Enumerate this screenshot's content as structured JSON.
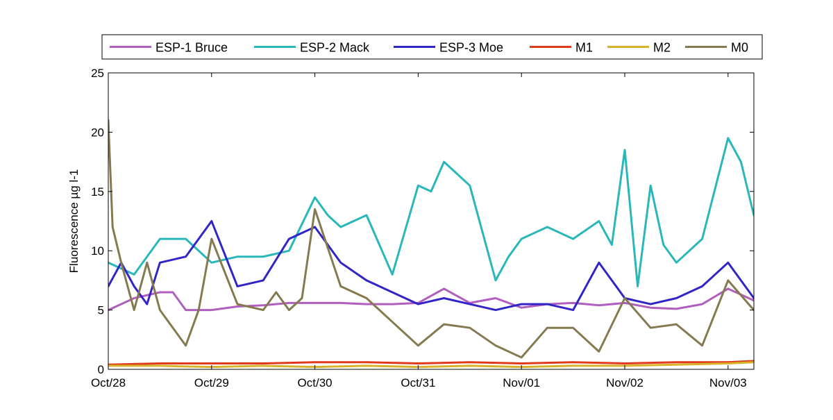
{
  "chart_data": {
    "type": "line",
    "title": "",
    "xlabel": "",
    "ylabel": "Fluorescence µg l-1",
    "xlim": [
      "2010-10-28T00:00",
      "2010-11-03T06:00"
    ],
    "ylim": [
      0,
      25
    ],
    "yticks": [
      0,
      5,
      10,
      15,
      20,
      25
    ],
    "xticks": [
      "Oct/28",
      "Oct/29",
      "Oct/30",
      "Oct/31",
      "Nov/01",
      "Nov/02",
      "Nov/03"
    ],
    "xtick_dates": [
      "2010-10-28T00:00",
      "2010-10-29T00:00",
      "2010-10-30T00:00",
      "2010-10-31T00:00",
      "2010-11-01T00:00",
      "2010-11-02T00:00",
      "2010-11-03T00:00"
    ],
    "grid": false,
    "legend_position": "top, above plot, single row",
    "series": [
      {
        "name": "ESP-1 Bruce",
        "color": "#b05fbe",
        "x": [
          "2010-10-28T00:00",
          "2010-10-28T06:00",
          "2010-10-28T12:00",
          "2010-10-28T15:00",
          "2010-10-28T18:00",
          "2010-10-29T00:00",
          "2010-10-29T06:00",
          "2010-10-29T12:00",
          "2010-10-29T18:00",
          "2010-10-30T00:00",
          "2010-10-30T06:00",
          "2010-10-30T12:00",
          "2010-10-30T18:00",
          "2010-10-31T00:00",
          "2010-10-31T06:00",
          "2010-10-31T12:00",
          "2010-10-31T18:00",
          "2010-11-01T00:00",
          "2010-11-01T06:00",
          "2010-11-01T12:00",
          "2010-11-01T18:00",
          "2010-11-02T00:00",
          "2010-11-02T06:00",
          "2010-11-02T12:00",
          "2010-11-02T18:00",
          "2010-11-03T00:00",
          "2010-11-03T06:00"
        ],
        "y": [
          5.0,
          6.0,
          6.5,
          6.5,
          5.0,
          5.0,
          5.3,
          5.4,
          5.6,
          5.6,
          5.6,
          5.5,
          5.5,
          5.6,
          6.8,
          5.6,
          6.0,
          5.2,
          5.5,
          5.6,
          5.4,
          5.6,
          5.2,
          5.1,
          5.5,
          6.8,
          5.8
        ]
      },
      {
        "name": "ESP-2 Mack",
        "color": "#2ab7b9",
        "x": [
          "2010-10-28T00:00",
          "2010-10-28T06:00",
          "2010-10-28T12:00",
          "2010-10-28T18:00",
          "2010-10-29T00:00",
          "2010-10-29T06:00",
          "2010-10-29T12:00",
          "2010-10-29T18:00",
          "2010-10-30T00:00",
          "2010-10-30T03:00",
          "2010-10-30T06:00",
          "2010-10-30T12:00",
          "2010-10-30T18:00",
          "2010-10-31T00:00",
          "2010-10-31T03:00",
          "2010-10-31T06:00",
          "2010-10-31T12:00",
          "2010-10-31T18:00",
          "2010-10-31T21:00",
          "2010-11-01T00:00",
          "2010-11-01T06:00",
          "2010-11-01T12:00",
          "2010-11-01T18:00",
          "2010-11-01T21:00",
          "2010-11-02T00:00",
          "2010-11-02T03:00",
          "2010-11-02T06:00",
          "2010-11-02T09:00",
          "2010-11-02T12:00",
          "2010-11-02T18:00",
          "2010-11-03T00:00",
          "2010-11-03T03:00",
          "2010-11-03T06:00"
        ],
        "y": [
          9.0,
          8.0,
          11.0,
          11.0,
          9.0,
          9.5,
          9.5,
          10.0,
          14.5,
          13.0,
          12.0,
          13.0,
          8.0,
          15.5,
          15.0,
          17.5,
          15.5,
          7.5,
          9.5,
          11.0,
          12.0,
          11.0,
          12.5,
          10.5,
          18.5,
          7.0,
          15.5,
          10.5,
          9.0,
          11.0,
          19.5,
          17.5,
          13.0
        ]
      },
      {
        "name": "ESP-3 Moe",
        "color": "#3125c8",
        "x": [
          "2010-10-28T00:00",
          "2010-10-28T03:00",
          "2010-10-28T06:00",
          "2010-10-28T09:00",
          "2010-10-28T12:00",
          "2010-10-28T18:00",
          "2010-10-29T00:00",
          "2010-10-29T06:00",
          "2010-10-29T12:00",
          "2010-10-29T18:00",
          "2010-10-30T00:00",
          "2010-10-30T06:00",
          "2010-10-30T12:00",
          "2010-10-30T18:00",
          "2010-10-31T00:00",
          "2010-10-31T06:00",
          "2010-10-31T12:00",
          "2010-10-31T18:00",
          "2010-11-01T00:00",
          "2010-11-01T06:00",
          "2010-11-01T12:00",
          "2010-11-01T18:00",
          "2010-11-02T00:00",
          "2010-11-02T06:00",
          "2010-11-02T12:00",
          "2010-11-02T18:00",
          "2010-11-03T00:00",
          "2010-11-03T06:00"
        ],
        "y": [
          7.0,
          9.0,
          7.0,
          5.5,
          9.0,
          9.5,
          12.5,
          7.0,
          7.5,
          11.0,
          12.0,
          9.0,
          7.5,
          6.5,
          5.5,
          6.0,
          5.5,
          5.0,
          5.5,
          5.5,
          5.0,
          9.0,
          6.0,
          5.5,
          6.0,
          7.0,
          9.0,
          6.0
        ]
      },
      {
        "name": "M1",
        "color": "#e03a1e",
        "x": [
          "2010-10-28T00:00",
          "2010-10-28T12:00",
          "2010-10-29T00:00",
          "2010-10-29T12:00",
          "2010-10-30T00:00",
          "2010-10-30T12:00",
          "2010-10-31T00:00",
          "2010-10-31T12:00",
          "2010-11-01T00:00",
          "2010-11-01T12:00",
          "2010-11-02T00:00",
          "2010-11-02T12:00",
          "2010-11-03T00:00",
          "2010-11-03T06:00"
        ],
        "y": [
          0.4,
          0.5,
          0.5,
          0.5,
          0.6,
          0.6,
          0.5,
          0.6,
          0.5,
          0.6,
          0.5,
          0.6,
          0.6,
          0.7
        ]
      },
      {
        "name": "M2",
        "color": "#d8b22a",
        "x": [
          "2010-10-28T00:00",
          "2010-10-28T12:00",
          "2010-10-29T00:00",
          "2010-10-29T12:00",
          "2010-10-30T00:00",
          "2010-10-30T12:00",
          "2010-10-31T00:00",
          "2010-10-31T12:00",
          "2010-11-01T00:00",
          "2010-11-01T12:00",
          "2010-11-02T00:00",
          "2010-11-02T12:00",
          "2010-11-03T00:00",
          "2010-11-03T06:00"
        ],
        "y": [
          0.3,
          0.3,
          0.2,
          0.3,
          0.2,
          0.3,
          0.2,
          0.3,
          0.2,
          0.3,
          0.3,
          0.4,
          0.5,
          0.6
        ]
      },
      {
        "name": "M0",
        "color": "#857a4f",
        "x": [
          "2010-10-28T00:00",
          "2010-10-28T01:00",
          "2010-10-28T03:00",
          "2010-10-28T06:00",
          "2010-10-28T09:00",
          "2010-10-28T12:00",
          "2010-10-28T18:00",
          "2010-10-28T21:00",
          "2010-10-29T00:00",
          "2010-10-29T06:00",
          "2010-10-29T12:00",
          "2010-10-29T15:00",
          "2010-10-29T18:00",
          "2010-10-29T21:00",
          "2010-10-30T00:00",
          "2010-10-30T06:00",
          "2010-10-30T12:00",
          "2010-10-30T18:00",
          "2010-10-31T00:00",
          "2010-10-31T06:00",
          "2010-10-31T12:00",
          "2010-10-31T18:00",
          "2010-11-01T00:00",
          "2010-11-01T06:00",
          "2010-11-01T12:00",
          "2010-11-01T18:00",
          "2010-11-02T00:00",
          "2010-11-02T06:00",
          "2010-11-02T12:00",
          "2010-11-02T18:00",
          "2010-11-03T00:00",
          "2010-11-03T06:00"
        ],
        "y": [
          21.0,
          12.0,
          9.0,
          5.0,
          9.0,
          5.0,
          2.0,
          5.0,
          11.0,
          5.5,
          5.0,
          6.5,
          5.0,
          6.0,
          13.5,
          7.0,
          6.0,
          4.0,
          2.0,
          3.8,
          3.5,
          2.0,
          1.0,
          3.5,
          3.5,
          1.5,
          6.0,
          3.5,
          3.8,
          2.0,
          7.5,
          5.0
        ]
      }
    ]
  }
}
